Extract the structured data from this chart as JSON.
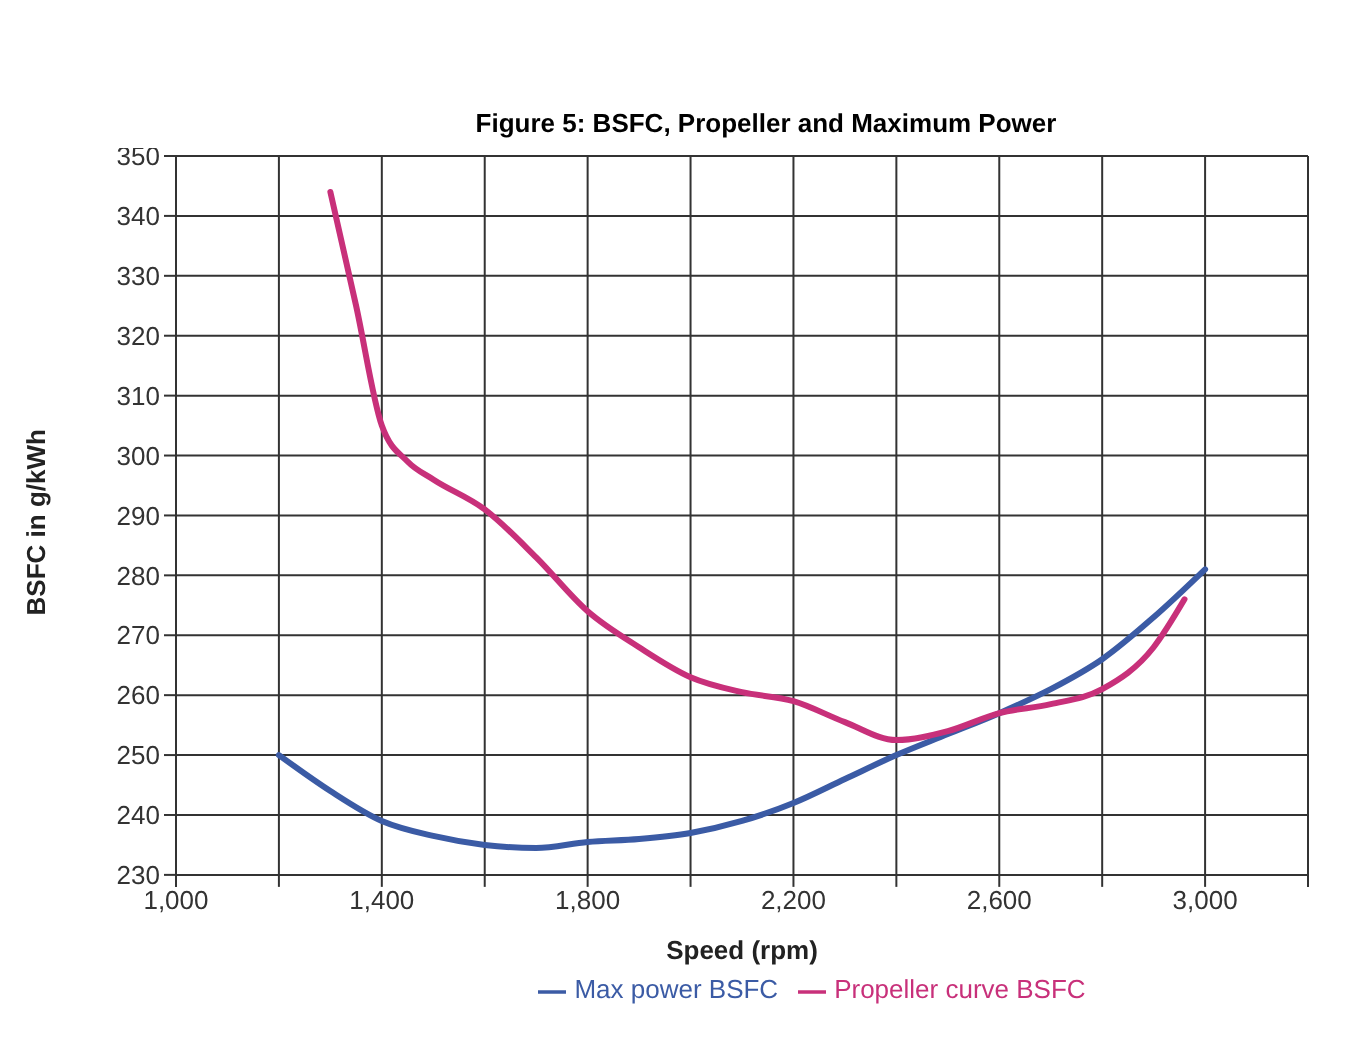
{
  "chart_data": {
    "type": "line",
    "title": "Figure 5: BSFC, Propeller and Maximum Power",
    "xlabel": "Speed (rpm)",
    "ylabel": "BSFC in g/kWh",
    "series": [
      {
        "name": "Max power BSFC",
        "color": "#3b5ba5",
        "x": [
          1200,
          1300,
          1400,
          1500,
          1600,
          1700,
          1800,
          1900,
          2000,
          2100,
          2200,
          2300,
          2400,
          2500,
          2600,
          2700,
          2800,
          2900,
          3000
        ],
        "values": [
          250,
          244,
          239,
          236.5,
          235,
          234.5,
          235.5,
          236,
          237,
          239,
          242,
          246,
          250,
          253.5,
          257,
          261,
          266,
          273,
          281
        ]
      },
      {
        "name": "Propeller curve BSFC",
        "color": "#c8307a",
        "x": [
          1300,
          1350,
          1400,
          1450,
          1500,
          1600,
          1700,
          1800,
          1900,
          2000,
          2100,
          2200,
          2300,
          2400,
          2500,
          2600,
          2700,
          2800,
          2900,
          2960
        ],
        "values": [
          344,
          325,
          305,
          299,
          296,
          291,
          283,
          274,
          268,
          263,
          260.5,
          259,
          255.5,
          252.5,
          254,
          257,
          258.5,
          261,
          268,
          276
        ]
      }
    ],
    "xlim": [
      1000,
      3200
    ],
    "xticks": [
      {
        "value": 1000,
        "label": "1,000"
      },
      {
        "value": 1200,
        "label": null
      },
      {
        "value": 1400,
        "label": "1,400"
      },
      {
        "value": 1600,
        "label": null
      },
      {
        "value": 1800,
        "label": "1,800"
      },
      {
        "value": 2000,
        "label": null
      },
      {
        "value": 2200,
        "label": "2,200"
      },
      {
        "value": 2400,
        "label": null
      },
      {
        "value": 2600,
        "label": "2,600"
      },
      {
        "value": 2800,
        "label": null
      },
      {
        "value": 3000,
        "label": "3,000"
      },
      {
        "value": 3200,
        "label": null
      }
    ],
    "ylim": [
      230,
      350
    ],
    "yticks": [
      230,
      240,
      250,
      260,
      270,
      280,
      290,
      300,
      310,
      320,
      330,
      340,
      350
    ],
    "grid": true,
    "legend": "bottom",
    "marker": "none",
    "line_style": "solid"
  }
}
